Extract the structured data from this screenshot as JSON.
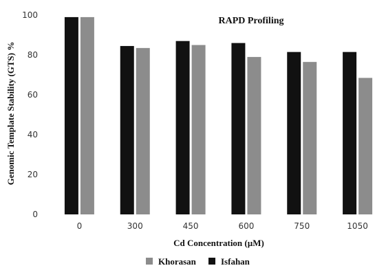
{
  "chart_data": {
    "type": "bar",
    "title": "RAPD Profiling",
    "xlabel": "Cd Concentration (µM)",
    "ylabel": "Genomic Template Stability (GTS) %",
    "categories": [
      "0",
      "300",
      "450",
      "600",
      "750",
      "1050"
    ],
    "series": [
      {
        "name": "Isfahan",
        "color": "#111111",
        "values": [
          99,
          84.5,
          87,
          86,
          81.5,
          81.5
        ]
      },
      {
        "name": "Khorasan",
        "color": "#8c8c8c",
        "values": [
          99,
          83.5,
          85,
          79,
          76.5,
          68.5
        ]
      }
    ],
    "ylim": [
      0,
      100
    ],
    "yticks": [
      0,
      20,
      40,
      60,
      80,
      100
    ],
    "grid": false,
    "legend": {
      "placement": "bottom",
      "order": [
        "Khorasan",
        "Isfahan"
      ]
    }
  }
}
